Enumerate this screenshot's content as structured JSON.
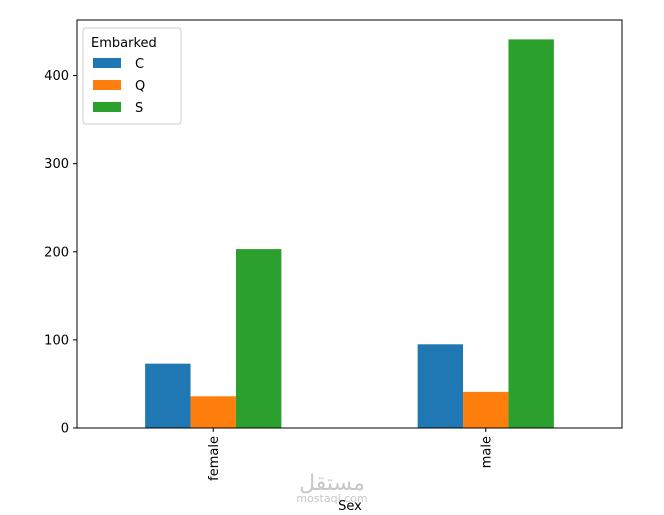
{
  "chart_data": {
    "type": "bar",
    "categories": [
      "female",
      "male"
    ],
    "series": [
      {
        "name": "C",
        "values": [
          73,
          95
        ],
        "color": "#1f77b4"
      },
      {
        "name": "Q",
        "values": [
          36,
          41
        ],
        "color": "#ff7f0e"
      },
      {
        "name": "S",
        "values": [
          203,
          441
        ],
        "color": "#2ca02c"
      }
    ],
    "xlabel": "Sex",
    "ylabel": "",
    "title": "",
    "ylim": [
      0,
      463
    ],
    "yticks": [
      0,
      100,
      200,
      300,
      400
    ],
    "legend": {
      "title": "Embarked",
      "placement": "top-left"
    },
    "grid": false,
    "xtick_rotation": "vertical"
  },
  "watermark": {
    "text": "مستقل",
    "subtext": "mostaql.com"
  }
}
